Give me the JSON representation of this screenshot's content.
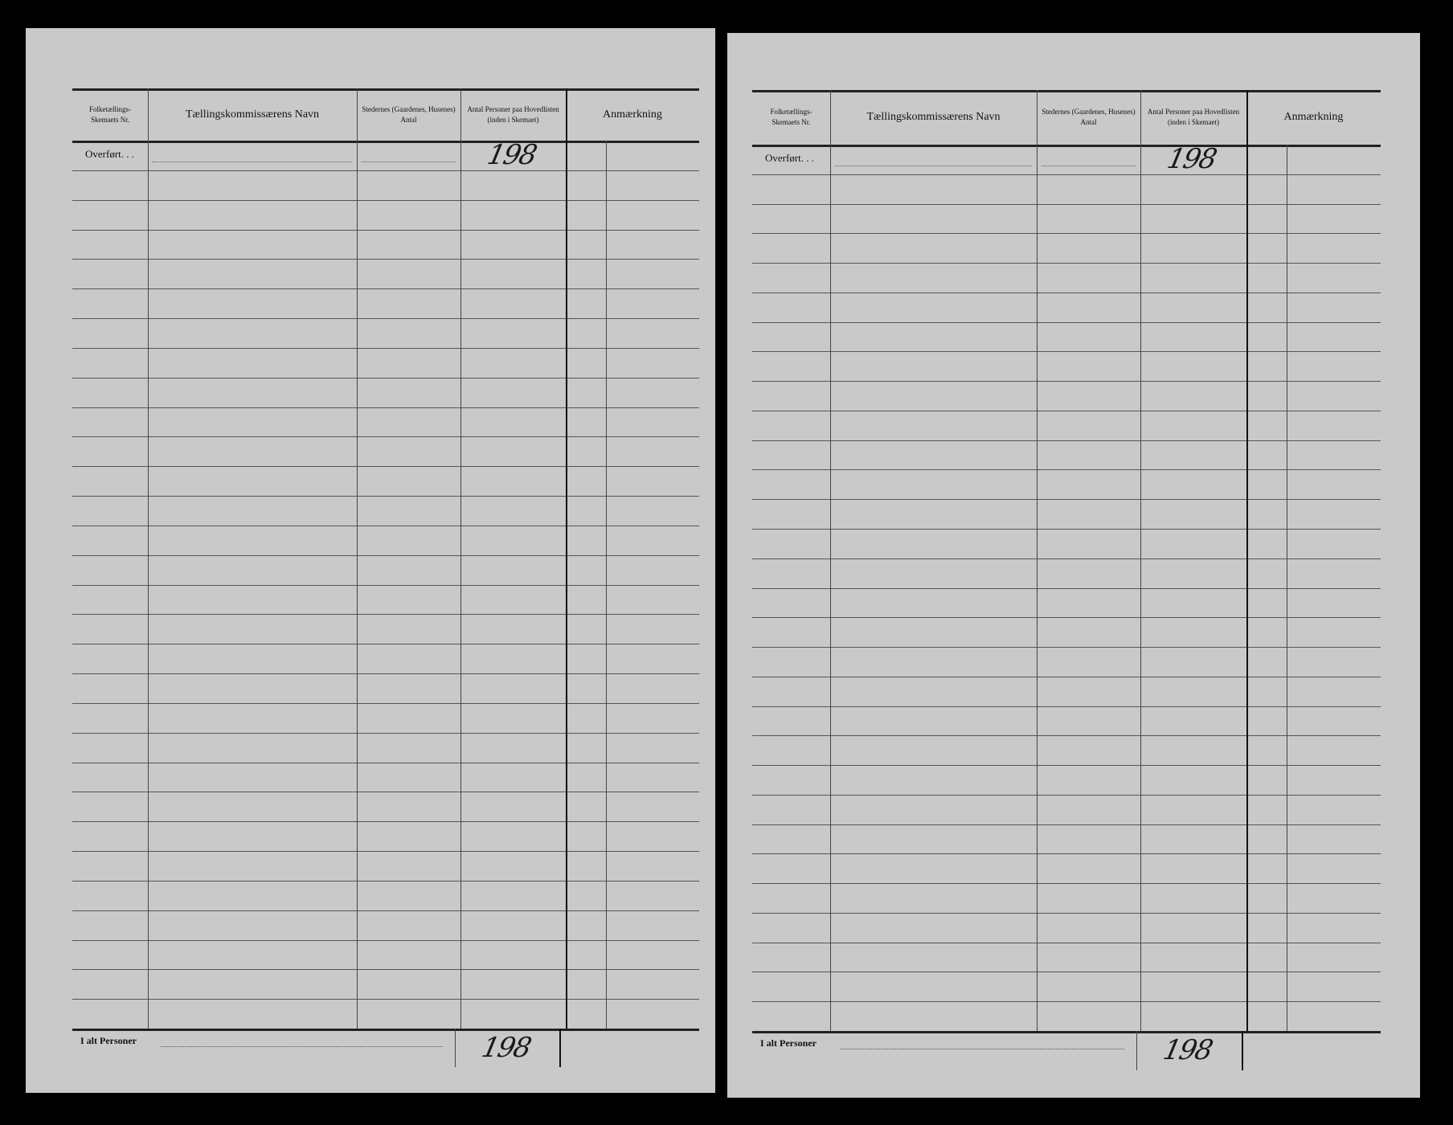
{
  "pages": [
    {
      "headers": {
        "col1": "Folketællings-\nSkemaets Nr.",
        "col2": "Tællingskommissærens Navn",
        "col3": "Stedernes (Gaardenes, Husenes) Antal",
        "col4": "Antal Personer paa Hovedlisten (inden i Skemaet)",
        "col5": "Anmærkning"
      },
      "carried_label": "Overført. . .",
      "carried_value": "198",
      "total_label": "I alt Personer",
      "total_value": "198"
    },
    {
      "headers": {
        "col1": "Folketællings-\nSkemaets Nr.",
        "col2": "Tællingskommissærens Navn",
        "col3": "Stedernes (Gaardenes, Husenes) Antal",
        "col4": "Antal Personer paa Hovedlisten (inden i Skemaet)",
        "col5": "Anmærkning"
      },
      "carried_label": "Overført. . .",
      "carried_value": "198",
      "total_label": "I alt Personer",
      "total_value": "198"
    }
  ]
}
